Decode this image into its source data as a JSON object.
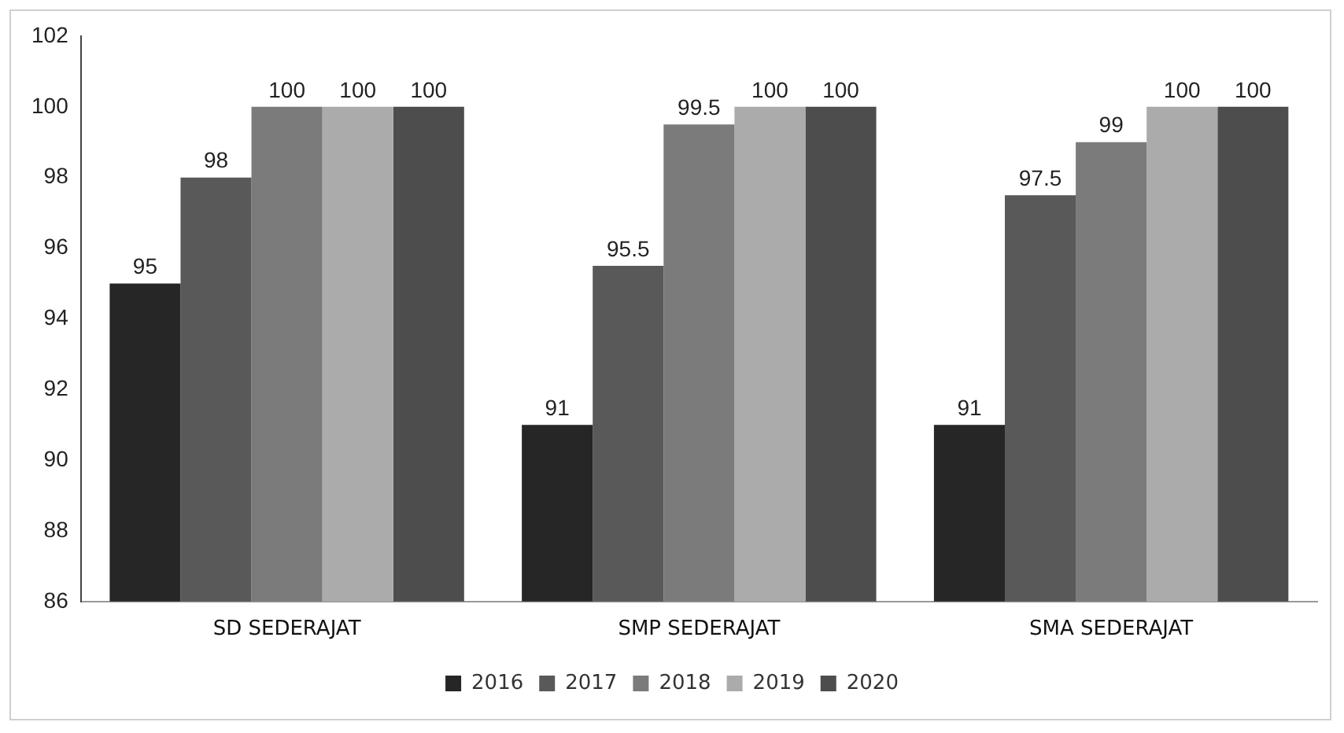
{
  "chart_data": {
    "type": "bar",
    "categories": [
      "SD SEDERAJAT",
      "SMP SEDERAJAT",
      "SMA SEDERAJAT"
    ],
    "series": [
      {
        "name": "2016",
        "color": "#262626",
        "values": [
          95,
          91,
          91
        ]
      },
      {
        "name": "2017",
        "color": "#595959",
        "values": [
          98,
          95.5,
          97.5
        ]
      },
      {
        "name": "2018",
        "color": "#7b7b7b",
        "values": [
          100,
          99.5,
          99
        ]
      },
      {
        "name": "2019",
        "color": "#ababab",
        "values": [
          100,
          100,
          100
        ]
      },
      {
        "name": "2020",
        "color": "#4d4d4d",
        "values": [
          100,
          100,
          100
        ]
      }
    ],
    "ylim": [
      86,
      102
    ],
    "yticks": [
      86,
      88,
      90,
      92,
      94,
      96,
      98,
      100,
      102
    ],
    "grid": false,
    "legend": "bottom",
    "data_labels": true
  }
}
